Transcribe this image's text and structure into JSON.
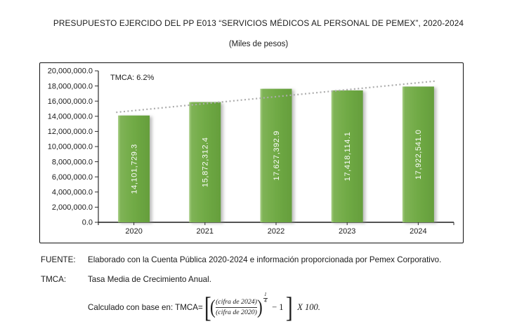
{
  "title": "PRESUPUESTO EJERCIDO DEL PP E013 “SERVICIOS MÉDICOS AL PERSONAL DE PEMEX”, 2020-2024",
  "subtitle": "(Miles de pesos)",
  "chart_data": {
    "type": "bar",
    "title": "PRESUPUESTO EJERCIDO DEL PP E013 “SERVICIOS MÉDICOS AL PERSONAL DE PEMEX”, 2020-2024",
    "subtitle": "(Miles de pesos)",
    "categories": [
      "2020",
      "2021",
      "2022",
      "2023",
      "2024"
    ],
    "values": [
      14101729.3,
      15872312.4,
      17627392.9,
      17418114.1,
      17922541.0
    ],
    "bar_labels": [
      "14,101,729.3",
      "15,872,312.4",
      "17,627,392.9",
      "17,418,114.1",
      "17,922,541.0"
    ],
    "annotation": "TMCA: 6.2%",
    "ylim": [
      0,
      20000000
    ],
    "ytick_labels": [
      "0.0",
      "2,000,000.0",
      "4,000,000.0",
      "6,000,000.0",
      "8,000,000.0",
      "10,000,000.0",
      "12,000,000.0",
      "14,000,000.0",
      "16,000,000.0",
      "18,000,000.0",
      "20,000,000.0"
    ],
    "xlabel": "",
    "ylabel": "",
    "grid": false,
    "legend": "none",
    "trendline": {
      "type": "linear",
      "style": "dotted",
      "color": "#acacac"
    },
    "bar_color": "#70aa45",
    "bar_highlight_color": "#a8ce86",
    "bar_shade_color": "#659e3c",
    "label_text_color": "#fdfdfd",
    "axis_color": "#2b2b2b"
  },
  "notes": {
    "fuente_label": "FUENTE:",
    "fuente_text": "Elaborado con la Cuenta Pública 2020-2024 e información proporcionada por Pemex Corporativo.",
    "tmca_label": "TMCA:",
    "tmca_text": "Tasa Media de Crecimiento Anual.",
    "formula_intro": "Calculado con base en: TMCA=",
    "formula": {
      "lbracket": "[",
      "lparen": "(",
      "numerator": "(cifra de 2024)",
      "denominator": "(cifra de 2020)",
      "rparen": ")",
      "exponent_numerator": "1",
      "exponent_denominator": "4",
      "minus_one": "− 1",
      "rbracket": "]",
      "times": "X 100."
    }
  }
}
